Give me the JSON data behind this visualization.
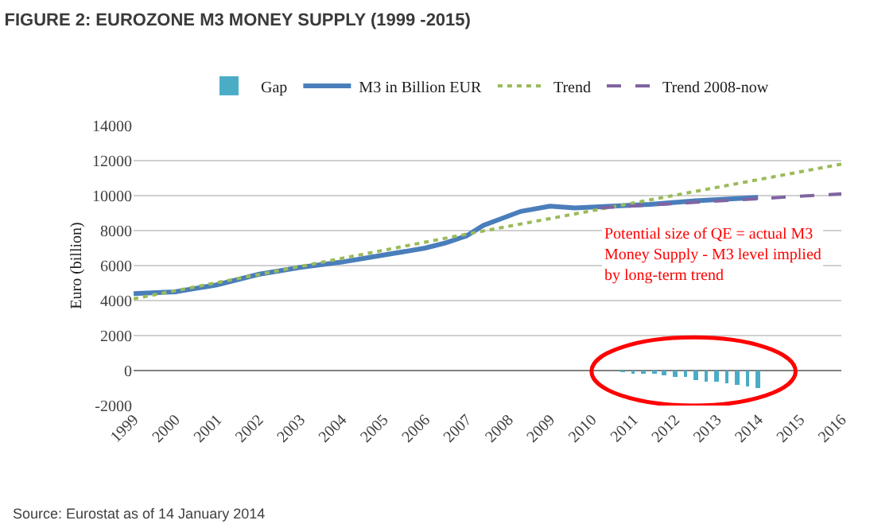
{
  "chart_data": {
    "type": "line",
    "title": "FIGURE 2: EUROZONE M3 MONEY SUPPLY (1999 -2015)",
    "ylabel": "Euro (billion)",
    "series": [
      {
        "name": "Gap",
        "type": "bar",
        "color": "#4bacc6",
        "x": [
          2010.75,
          2011,
          2011.25,
          2011.5,
          2011.75,
          2012,
          2012.25,
          2012.5,
          2012.75,
          2013,
          2013.25,
          2013.5,
          2013.75,
          2014
        ],
        "values": [
          -50,
          -100,
          -200,
          -200,
          -300,
          -400,
          -400,
          -500,
          -600,
          -600,
          -700,
          -800,
          -900,
          -1000
        ]
      },
      {
        "name": "M3 in Billion EUR",
        "line_style": "solid",
        "color": "#4a7ebb",
        "x": [
          1999,
          2000,
          2001,
          2002,
          2003,
          2004,
          2005,
          2006,
          2006.5,
          2007,
          2007.4,
          2008.3,
          2009,
          2009.6,
          2010.5,
          2011.4,
          2012.5,
          2014
        ],
        "values": [
          4400,
          4500,
          4900,
          5500,
          5900,
          6200,
          6600,
          7000,
          7300,
          7700,
          8300,
          9100,
          9400,
          9300,
          9400,
          9500,
          9700,
          9900
        ]
      },
      {
        "name": "Trend",
        "line_style": "dotted",
        "color": "#9bbb59",
        "x": [
          1999,
          2007,
          2016
        ],
        "values": [
          4100,
          7800,
          11800
        ]
      },
      {
        "name": "Trend 2008-now",
        "line_style": "dashed",
        "color": "#8064a2",
        "x": [
          2010.2,
          2016
        ],
        "values": [
          9300,
          10100
        ]
      }
    ],
    "xlim": [
      1999,
      2016
    ],
    "xticks": [
      1999,
      2000,
      2001,
      2002,
      2003,
      2004,
      2005,
      2006,
      2007,
      2008,
      2009,
      2010,
      2011,
      2012,
      2013,
      2014,
      2015,
      2016
    ],
    "ylim": [
      -2000,
      14000
    ],
    "yticks": [
      -2000,
      0,
      2000,
      4000,
      6000,
      8000,
      10000,
      12000,
      14000
    ],
    "grid": "y",
    "legend": "top",
    "marker": "none",
    "annotations": [
      "Potential size of QE = actual M3\nMoney Supply - M3 level implied\nby long-term trend",
      "Source: Eurostat as of 14 January 2014"
    ]
  }
}
